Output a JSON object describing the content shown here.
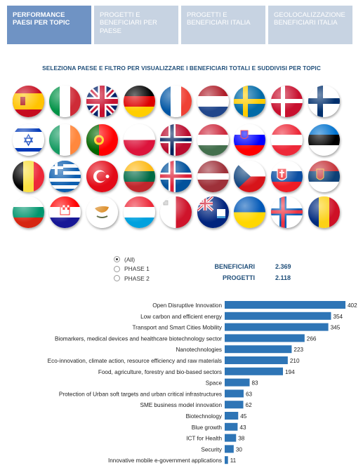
{
  "tabs": [
    {
      "label": "PERFORMANCE PAESI PER TOPIC",
      "active": true
    },
    {
      "label": "PROGETTI E BENEFICIARI PER PAESE",
      "active": false
    },
    {
      "label": "PROGETTI E BENEFICIARI ITALIA",
      "active": false
    },
    {
      "label": "GEOLOCALIZZAZIONE BENEFICIARI ITALIA",
      "active": false
    }
  ],
  "subtitle": "SELEZIONA PAESE E FILTRO PER VISUALIZZARE I BENEFICIARI TOTALI E SUDDIVISI PER TOPIC",
  "flags": [
    "spain-flag-icon",
    "italy-flag-icon",
    "uk-flag-icon",
    "germany-flag-icon",
    "france-flag-icon",
    "netherlands-flag-icon",
    "sweden-flag-icon",
    "denmark-flag-icon",
    "finland-flag-icon",
    "israel-flag-icon",
    "ireland-flag-icon",
    "portugal-flag-icon",
    "poland-flag-icon",
    "norway-flag-icon",
    "hungary-flag-icon",
    "slovenia-flag-icon",
    "austria-flag-icon",
    "estonia-flag-icon",
    "belgium-flag-icon",
    "greece-flag-icon",
    "turkey-flag-icon",
    "lithuania-flag-icon",
    "iceland-flag-icon",
    "latvia-flag-icon",
    "czech-flag-icon",
    "slovakia-flag-icon",
    "serbia-flag-icon",
    "bulgaria-flag-icon",
    "croatia-flag-icon",
    "cyprus-flag-icon",
    "luxembourg-flag-icon",
    "malta-flag-icon",
    "anguilla-flag-icon",
    "ukraine-flag-icon",
    "faroe-flag-icon",
    "romania-flag-icon"
  ],
  "phases": {
    "options": [
      "(All)",
      "PHASE 1",
      "PHASE 2"
    ],
    "selected": "(All)"
  },
  "kpis": {
    "beneficiari_label": "BENEFICIARI",
    "beneficiari_value": "2.369",
    "progetti_label": "PROGETTI",
    "progetti_value": "2.118"
  },
  "colors": {
    "bar": "#2e75b6",
    "tab_active": "#6f93c4",
    "tab_inactive": "#c7d3e2",
    "accent_text": "#1f4e79"
  },
  "chart_data": {
    "type": "bar",
    "orientation": "horizontal",
    "categories": [
      "Open Disruptive Innovation",
      "Low carbon and efficient energy",
      "Transport and Smart Cities Mobility",
      "Biomarkers, medical devices and healthcare biotechnology sector",
      "Nanotechnologies",
      "Eco-innovation, climate action, resource efficiency and raw materials",
      "Food, agriculture, forestry and bio-based sectors",
      "Space",
      "Protection of Urban soft targets and urban critical infrastructures",
      "SME business model innovation",
      "Biotechnology",
      "Blue growth",
      "ICT for Health",
      "Security",
      "Innovative mobile e-government applications"
    ],
    "values": [
      402,
      354,
      345,
      266,
      223,
      210,
      194,
      83,
      63,
      62,
      45,
      43,
      38,
      30,
      11
    ],
    "xlim": [
      0,
      402
    ]
  }
}
